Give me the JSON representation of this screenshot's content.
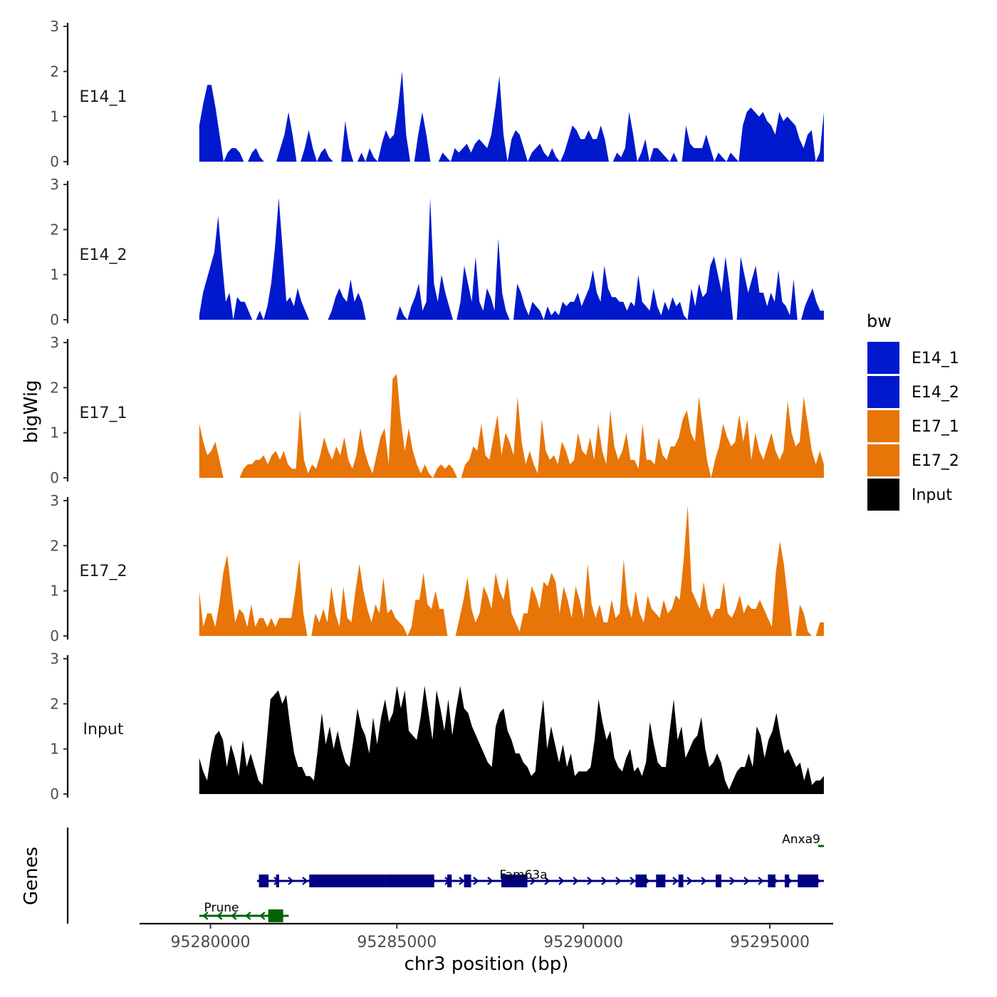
{
  "chart_data": {
    "type": "area",
    "title": "",
    "ylabel": "bigWig",
    "xlabel": "chr3 position (bp)",
    "genes_label": "Genes",
    "ylim": [
      0,
      3
    ],
    "y_ticks": [
      0,
      1,
      2,
      3
    ],
    "x_range": [
      95278100,
      95296700
    ],
    "x_ticks": [
      {
        "value": 95280000,
        "label": "95280000"
      },
      {
        "value": 95285000,
        "label": "95285000"
      },
      {
        "value": 95290000,
        "label": "95290000"
      },
      {
        "value": 95295000,
        "label": "95295000"
      }
    ],
    "data_range": [
      95279700,
      95296450
    ],
    "legend": {
      "title": "bw",
      "position": "right",
      "items": [
        {
          "label": "E14_1",
          "color": "#0019CC"
        },
        {
          "label": "E14_2",
          "color": "#0019CC"
        },
        {
          "label": "E17_1",
          "color": "#E87507"
        },
        {
          "label": "E17_2",
          "color": "#E87507"
        },
        {
          "label": "Input",
          "color": "#000000"
        }
      ]
    },
    "series": [
      {
        "name": "E14_1",
        "color": "#0019CC",
        "values": [
          0.8,
          1.3,
          1.7,
          1.7,
          1.2,
          0.6,
          0,
          0.2,
          0.3,
          0.3,
          0.2,
          0,
          0,
          0.2,
          0.3,
          0.1,
          0,
          0,
          0,
          0,
          0.3,
          0.6,
          1.1,
          0.6,
          0,
          0,
          0.3,
          0.7,
          0.3,
          0,
          0.2,
          0.3,
          0.1,
          0,
          0,
          0,
          0.9,
          0.3,
          0,
          0,
          0.2,
          0,
          0.3,
          0.1,
          0,
          0.4,
          0.7,
          0.5,
          0.6,
          1.2,
          2.0,
          0.6,
          0,
          0,
          0.6,
          1.1,
          0.6,
          0,
          0,
          0,
          0.2,
          0.1,
          0,
          0.3,
          0.2,
          0.3,
          0.4,
          0.2,
          0.4,
          0.5,
          0.4,
          0.3,
          0.6,
          1.2,
          1.9,
          0.6,
          0,
          0.5,
          0.7,
          0.6,
          0.3,
          0,
          0.2,
          0.3,
          0.4,
          0.2,
          0.1,
          0.3,
          0.1,
          0,
          0.2,
          0.5,
          0.8,
          0.7,
          0.5,
          0.5,
          0.7,
          0.5,
          0.5,
          0.8,
          0.5,
          0,
          0,
          0.2,
          0.1,
          0.3,
          1.1,
          0.6,
          0,
          0.2,
          0.5,
          0,
          0.3,
          0.3,
          0.2,
          0.1,
          0,
          0.2,
          0,
          0,
          0.8,
          0.4,
          0.3,
          0.3,
          0.3,
          0.6,
          0.3,
          0,
          0.2,
          0.1,
          0,
          0.2,
          0.1,
          0,
          0.8,
          1.1,
          1.2,
          1.1,
          1.0,
          1.1,
          0.9,
          0.8,
          0.6,
          1.1,
          0.9,
          1.0,
          0.9,
          0.8,
          0.5,
          0.3,
          0.6,
          0.7,
          0,
          0.2,
          1.1
        ]
      },
      {
        "name": "E14_2",
        "color": "#0019CC",
        "values": [
          0.1,
          0.6,
          0.9,
          1.2,
          1.5,
          2.3,
          1.3,
          0.4,
          0.6,
          0,
          0.5,
          0.4,
          0.4,
          0.2,
          0,
          0,
          0.2,
          0,
          0.3,
          0.8,
          1.6,
          2.7,
          1.6,
          0.4,
          0.5,
          0.3,
          0.7,
          0.4,
          0.2,
          0,
          0,
          0,
          0,
          0,
          0,
          0.2,
          0.5,
          0.7,
          0.5,
          0.4,
          0.9,
          0.4,
          0.6,
          0.4,
          0,
          0,
          0,
          0,
          0,
          0,
          0,
          0,
          0,
          0.3,
          0.1,
          0,
          0.3,
          0.5,
          0.8,
          0.2,
          0.4,
          2.7,
          0.8,
          0.4,
          1.0,
          0.6,
          0.3,
          0,
          0,
          0.4,
          1.2,
          0.8,
          0.4,
          1.4,
          0.4,
          0.2,
          0.7,
          0.5,
          0.2,
          1.8,
          0.6,
          0.2,
          0,
          0,
          0.8,
          0.6,
          0.3,
          0.1,
          0.4,
          0.3,
          0.2,
          0,
          0.3,
          0.1,
          0.2,
          0.1,
          0.4,
          0.3,
          0.4,
          0.4,
          0.6,
          0.3,
          0.5,
          0.7,
          1.1,
          0.6,
          0.4,
          1.2,
          0.7,
          0.5,
          0.5,
          0.4,
          0.4,
          0.2,
          0.4,
          0.3,
          1.0,
          0.4,
          0.3,
          0.2,
          0.7,
          0.3,
          0.1,
          0.4,
          0.2,
          0.5,
          0.3,
          0.4,
          0.1,
          0,
          0.7,
          0.3,
          0.8,
          0.5,
          0.6,
          1.2,
          1.4,
          1.0,
          0.6,
          1.4,
          0.8,
          0,
          0,
          1.4,
          1.0,
          0.6,
          0.9,
          1.2,
          0.6,
          0.6,
          0.3,
          0.6,
          0.4,
          1.1,
          0.4,
          0.3,
          0.1,
          0.9,
          0,
          0,
          0.3,
          0.5,
          0.7,
          0.4,
          0.2,
          0.2
        ]
      },
      {
        "name": "E17_1",
        "color": "#E87507",
        "values": [
          1.2,
          0.8,
          0.5,
          0.6,
          0.8,
          0.4,
          0,
          0,
          0,
          0,
          0,
          0.2,
          0.3,
          0.3,
          0.4,
          0.4,
          0.5,
          0.3,
          0.5,
          0.6,
          0.4,
          0.6,
          0.3,
          0.2,
          0.2,
          1.5,
          0.4,
          0.1,
          0.3,
          0.2,
          0.5,
          0.9,
          0.6,
          0.4,
          0.7,
          0.5,
          0.9,
          0.4,
          0.2,
          0.5,
          1.1,
          0.6,
          0.3,
          0.1,
          0.5,
          0.9,
          1.1,
          0.3,
          2.2,
          2.3,
          1.3,
          0.6,
          1.1,
          0.6,
          0.3,
          0.1,
          0.3,
          0.1,
          0,
          0.2,
          0.3,
          0.2,
          0.3,
          0.2,
          0,
          0,
          0.3,
          0.4,
          0.7,
          0.6,
          1.2,
          0.5,
          0.4,
          0.9,
          1.4,
          0.5,
          1.0,
          0.8,
          0.5,
          1.8,
          0.8,
          0.3,
          0.6,
          0.3,
          0.1,
          1.3,
          0.6,
          0.4,
          0.5,
          0.3,
          0.8,
          0.6,
          0.3,
          0.4,
          1.0,
          0.6,
          0.5,
          0.9,
          0.4,
          1.2,
          0.6,
          0.3,
          1.5,
          0.7,
          0.4,
          0.6,
          1.0,
          0.4,
          0.4,
          0.2,
          1.2,
          0.4,
          0.4,
          0.3,
          0.9,
          0.5,
          0.4,
          0.7,
          0.7,
          0.9,
          1.3,
          1.5,
          1.0,
          0.8,
          1.8,
          1.1,
          0.4,
          0,
          0.4,
          0.7,
          1.2,
          0.9,
          0.7,
          0.8,
          1.4,
          0.8,
          1.3,
          0.4,
          1.0,
          0.6,
          0.4,
          0.7,
          1.0,
          0.6,
          0.4,
          0.6,
          1.7,
          1.0,
          0.7,
          0.8,
          1.8,
          1.2,
          0.6,
          0.3,
          0.6,
          0.3
        ]
      },
      {
        "name": "E17_2",
        "color": "#E87507",
        "values": [
          1.0,
          0.2,
          0.5,
          0.5,
          0.2,
          0.7,
          1.4,
          1.8,
          1.0,
          0.3,
          0.6,
          0.5,
          0.2,
          0.7,
          0.2,
          0.4,
          0.4,
          0.2,
          0.4,
          0.2,
          0.4,
          0.4,
          0.4,
          0.4,
          1.0,
          1.7,
          0.5,
          0,
          0,
          0.5,
          0.3,
          0.6,
          0.3,
          1.1,
          0.5,
          0.2,
          1.1,
          0.4,
          0.3,
          1.0,
          1.6,
          1.0,
          0.6,
          0.3,
          0.7,
          0.5,
          1.3,
          0.5,
          0.6,
          0.4,
          0.3,
          0.2,
          0,
          0.2,
          0.8,
          0.8,
          1.4,
          0.7,
          0.6,
          1.0,
          0.6,
          0.6,
          0,
          0,
          0,
          0.4,
          0.8,
          1.3,
          0.6,
          0.3,
          0.5,
          1.1,
          0.9,
          0.6,
          1.4,
          1.0,
          0.8,
          1.3,
          0.5,
          0.3,
          0.1,
          0.5,
          0.5,
          1.1,
          0.9,
          0.6,
          1.2,
          1.1,
          1.4,
          1.2,
          0.5,
          1.1,
          0.8,
          0.4,
          1.1,
          0.8,
          0.4,
          1.6,
          0.7,
          0.4,
          0.7,
          0.3,
          0.3,
          0.8,
          0.4,
          0.5,
          1.7,
          0.7,
          0.4,
          1.0,
          0.5,
          0.3,
          0.9,
          0.6,
          0.5,
          0.4,
          0.8,
          0.5,
          0.6,
          0.9,
          0.8,
          1.7,
          2.9,
          1.0,
          0.8,
          0.6,
          1.2,
          0.6,
          0.4,
          0.6,
          0.6,
          1.2,
          0.5,
          0.4,
          0.6,
          0.9,
          0.5,
          0.7,
          0.6,
          0.6,
          0.8,
          0.6,
          0.4,
          0.2,
          1.4,
          2.1,
          1.6,
          0.8,
          0,
          0,
          0.7,
          0.5,
          0.1,
          0,
          0,
          0.3,
          0.3
        ]
      },
      {
        "name": "Input",
        "color": "#000000",
        "values": [
          0.8,
          0.5,
          0.3,
          0.9,
          1.3,
          1.4,
          1.2,
          0.6,
          1.1,
          0.8,
          0.4,
          1.2,
          0.6,
          0.9,
          0.6,
          0.3,
          0.2,
          1.1,
          2.1,
          2.2,
          2.3,
          2.0,
          2.2,
          1.5,
          0.9,
          0.6,
          0.6,
          0.4,
          0.4,
          0.3,
          1.0,
          1.8,
          1.1,
          1.5,
          1.0,
          1.4,
          1.0,
          0.7,
          0.6,
          1.2,
          1.9,
          1.5,
          1.3,
          0.9,
          1.7,
          1.1,
          1.7,
          2.1,
          1.6,
          1.8,
          2.4,
          1.9,
          2.3,
          1.4,
          1.3,
          1.2,
          1.7,
          2.4,
          1.8,
          1.2,
          2.3,
          1.9,
          1.4,
          2.1,
          1.3,
          1.9,
          2.4,
          1.9,
          1.8,
          1.5,
          1.3,
          1.1,
          0.9,
          0.7,
          0.6,
          1.5,
          1.8,
          1.9,
          1.4,
          1.2,
          0.9,
          0.9,
          0.7,
          0.6,
          0.4,
          0.5,
          1.4,
          2.1,
          1.0,
          1.5,
          1.1,
          0.7,
          1.1,
          0.6,
          0.9,
          0.4,
          0.5,
          0.5,
          0.5,
          0.6,
          1.2,
          2.1,
          1.6,
          1.2,
          1.4,
          0.8,
          0.6,
          0.5,
          0.8,
          1.0,
          0.5,
          0.6,
          0.4,
          0.7,
          1.6,
          1.1,
          0.7,
          0.6,
          0.6,
          1.4,
          2.1,
          1.2,
          1.5,
          0.8,
          1.0,
          1.2,
          1.3,
          1.7,
          1.0,
          0.6,
          0.7,
          0.9,
          0.7,
          0.3,
          0.1,
          0.3,
          0.5,
          0.6,
          0.6,
          0.9,
          0.6,
          1.5,
          1.3,
          0.8,
          1.2,
          1.4,
          1.8,
          1.3,
          0.9,
          1.0,
          0.8,
          0.6,
          0.7,
          0.3,
          0.6,
          0.2,
          0.3,
          0.3,
          0.4
        ]
      }
    ],
    "genes": [
      {
        "name": "Fam63a",
        "color": "#000080",
        "strand": "+",
        "start": 95281250,
        "end": 95296450,
        "exons": [
          [
            95281300,
            95281560
          ],
          [
            95281760,
            95281840
          ],
          [
            95282650,
            95283600
          ],
          [
            95283600,
            95284700
          ],
          [
            95284700,
            95286000
          ],
          [
            95286350,
            95286470
          ],
          [
            95286800,
            95286990
          ],
          [
            95287800,
            95288500
          ],
          [
            95291400,
            95291700
          ],
          [
            95291950,
            95292200
          ],
          [
            95292550,
            95292680
          ],
          [
            95293550,
            95293700
          ],
          [
            95294950,
            95295150
          ],
          [
            95295400,
            95295520
          ],
          [
            95295750,
            95296300
          ]
        ]
      },
      {
        "name": "Prune",
        "color": "#006400",
        "strand": "-",
        "start": 95279700,
        "end": 95282100,
        "exons": [
          [
            95281550,
            95281950
          ]
        ]
      },
      {
        "name": "Anxa9",
        "color": "#006400",
        "strand": "-",
        "start": 95296300,
        "end": 95296450,
        "exons": []
      }
    ]
  }
}
